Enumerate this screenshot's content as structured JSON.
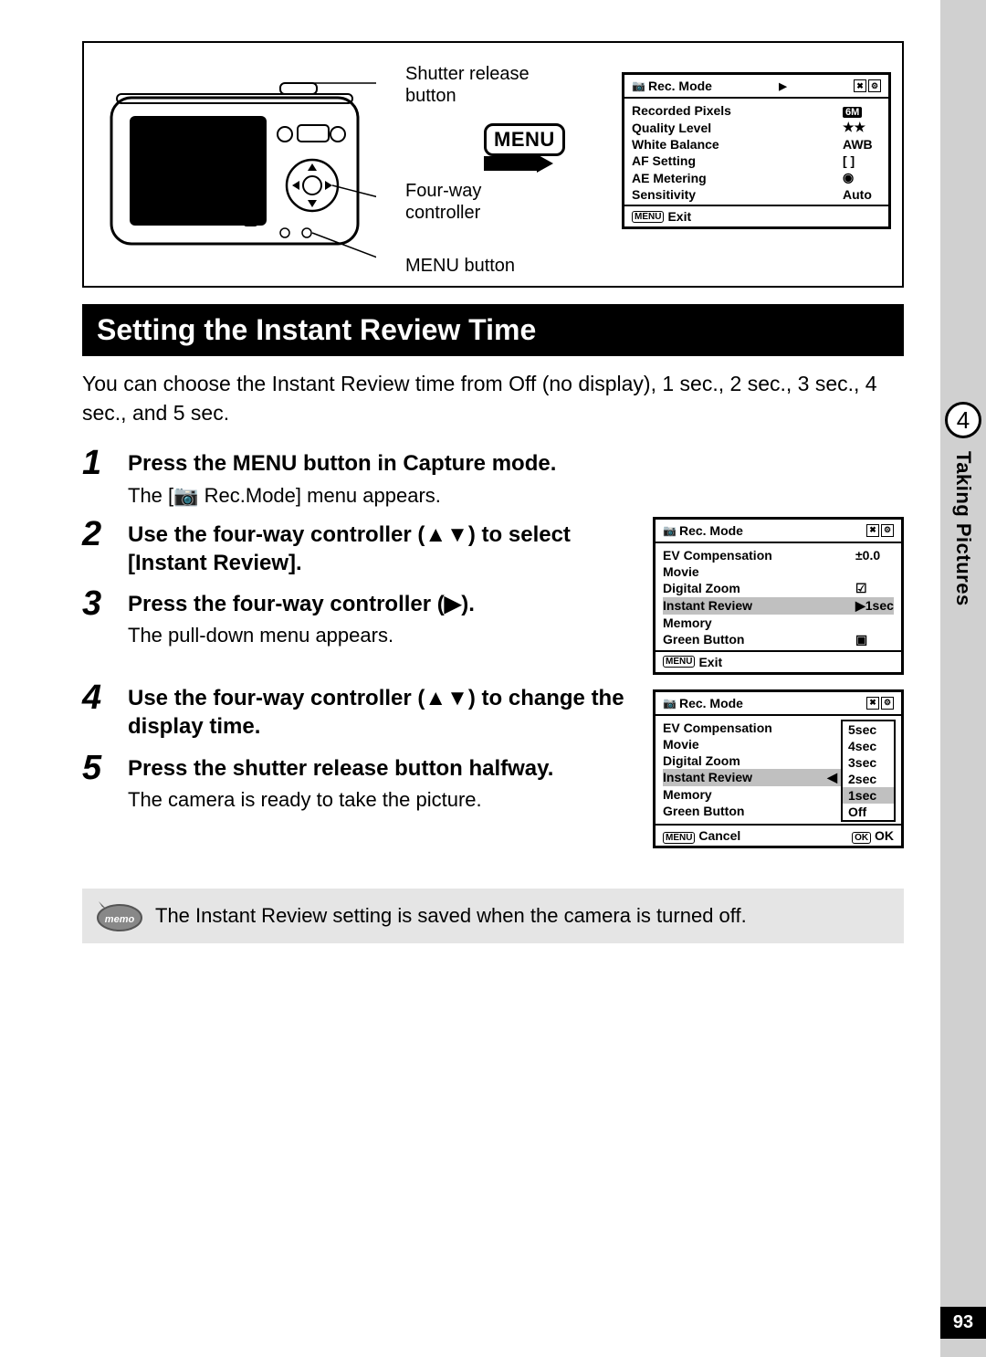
{
  "sidebar": {
    "chapter_num": "4",
    "chapter_title": "Taking Pictures"
  },
  "page_number": "93",
  "diagram": {
    "callout_shutter": "Shutter release button",
    "callout_controller": "Four-way controller",
    "callout_menu": "MENU button",
    "menu_badge": "MENU"
  },
  "lcd_top": {
    "title": "Rec. Mode",
    "rows": [
      {
        "label": "Recorded Pixels",
        "val": "6M",
        "badge": true
      },
      {
        "label": "Quality Level",
        "val": "★★"
      },
      {
        "label": "White Balance",
        "val": "AWB"
      },
      {
        "label": "AF Setting",
        "val": "[ ]"
      },
      {
        "label": "AE Metering",
        "val": "◉"
      },
      {
        "label": "Sensitivity",
        "val": "Auto"
      }
    ],
    "foot_menu": "MENU",
    "foot_label": "Exit"
  },
  "section_title": "Setting the Instant Review Time",
  "intro": "You can choose the Instant Review time from Off (no display), 1 sec., 2 sec., 3 sec., 4 sec., and 5 sec.",
  "steps": [
    {
      "num": "1",
      "title": "Press the MENU button in Capture mode.",
      "desc": "The [📷 Rec.Mode] menu appears."
    },
    {
      "num": "2",
      "title": "Use the four-way controller (▲▼) to select [Instant Review]."
    },
    {
      "num": "3",
      "title": "Press the four-way controller (▶).",
      "desc": "The pull-down menu appears."
    },
    {
      "num": "4",
      "title": "Use the four-way controller (▲▼) to change the display time."
    },
    {
      "num": "5",
      "title": "Press the shutter release button halfway.",
      "desc": "The camera is ready to take the picture."
    }
  ],
  "lcd_mid": {
    "title": "Rec. Mode",
    "rows": [
      {
        "label": "EV Compensation",
        "val": "±0.0"
      },
      {
        "label": "Movie",
        "val": ""
      },
      {
        "label": "Digital Zoom",
        "val": "☑"
      },
      {
        "label": "Instant Review",
        "val": "▶1sec",
        "hl": true
      },
      {
        "label": "Memory",
        "val": ""
      },
      {
        "label": "Green Button",
        "val": "▣"
      }
    ],
    "foot_menu": "MENU",
    "foot_label": "Exit"
  },
  "lcd_bot": {
    "title": "Rec. Mode",
    "rows": [
      {
        "label": "EV Compensation"
      },
      {
        "label": "Movie"
      },
      {
        "label": "Digital Zoom"
      },
      {
        "label": "Instant Review",
        "hl": true,
        "arrow": "◀"
      },
      {
        "label": "Memory"
      },
      {
        "label": "Green Button"
      }
    ],
    "options": [
      "5sec",
      "4sec",
      "3sec",
      "2sec",
      "1sec",
      "Off"
    ],
    "selected_idx": 4,
    "foot_menu": "MENU",
    "foot_cancel": "Cancel",
    "foot_ok_pill": "OK",
    "foot_ok": "OK"
  },
  "memo": {
    "label": "memo",
    "text": "The Instant Review setting is saved when the camera is turned off."
  }
}
